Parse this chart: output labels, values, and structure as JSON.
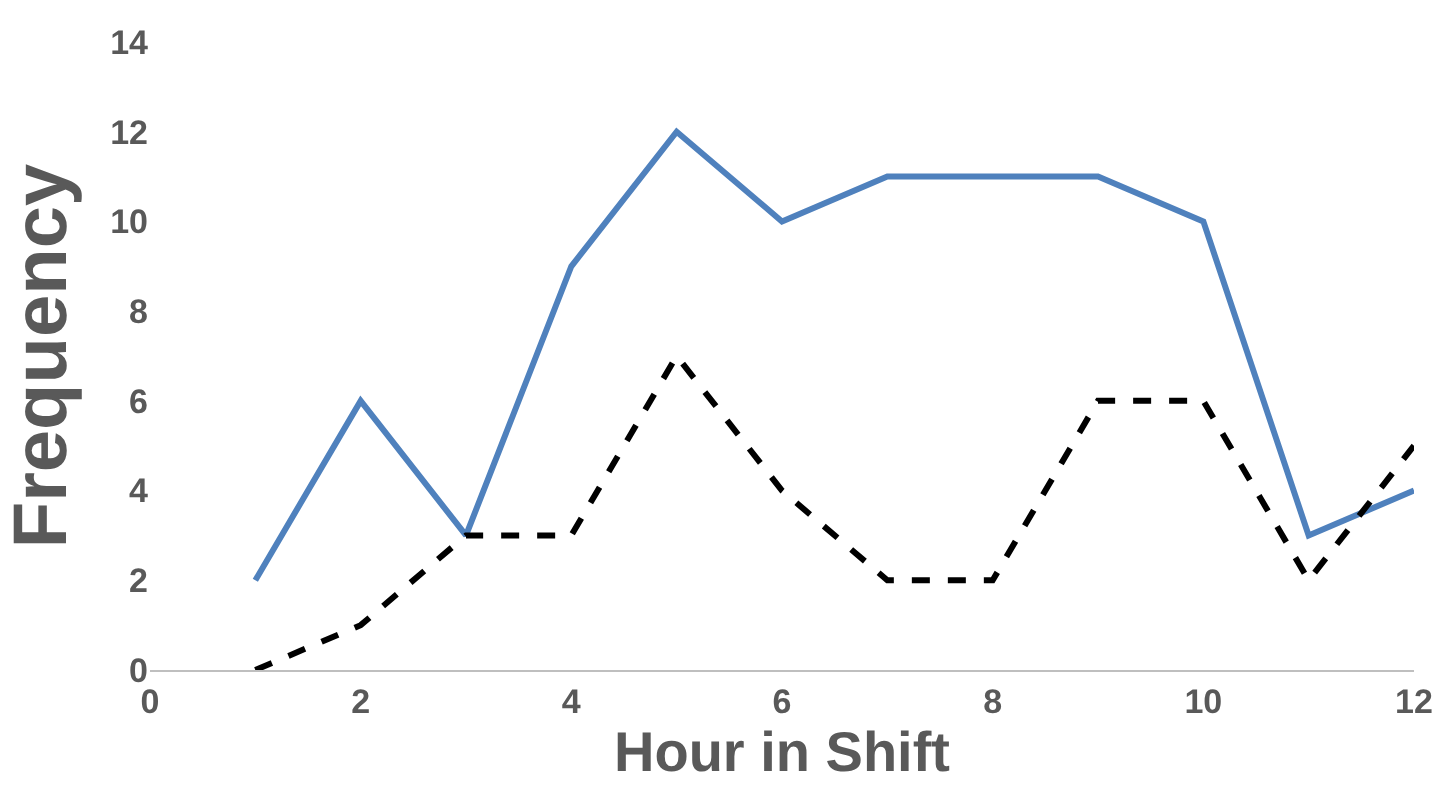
{
  "chart_data": {
    "type": "line",
    "xlabel": "Hour in Shift",
    "ylabel": "Frequency",
    "x": [
      1,
      2,
      3,
      4,
      5,
      6,
      7,
      8,
      9,
      10,
      11,
      12
    ],
    "series": [
      {
        "color": "#4f81bd",
        "line_style": "solid",
        "values": [
          2,
          6,
          3,
          9,
          12,
          10,
          11,
          11,
          11,
          10,
          3,
          4
        ]
      },
      {
        "color": "#000000",
        "line_style": "dashed",
        "values": [
          0,
          1,
          3,
          3,
          7,
          4,
          2,
          2,
          6,
          6,
          2,
          5
        ]
      }
    ],
    "xlim": [
      0,
      12
    ],
    "xticks": [
      0,
      2,
      4,
      6,
      8,
      10,
      12
    ],
    "ylim": [
      0,
      14
    ],
    "yticks": [
      0,
      2,
      4,
      6,
      8,
      10,
      12,
      14
    ],
    "grid": false,
    "legend": false
  }
}
